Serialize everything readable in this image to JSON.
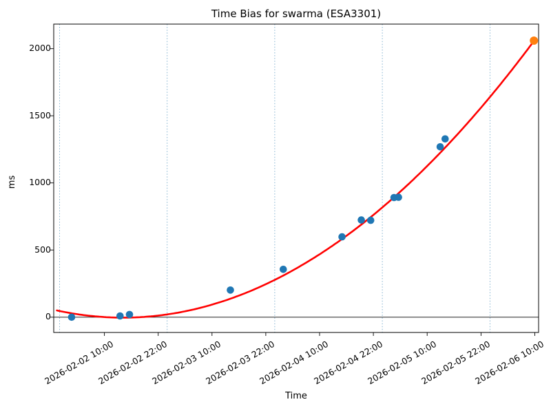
{
  "chart_data": {
    "type": "scatter",
    "title": "Time Bias for swarma (ESA3301)",
    "xlabel": "Time",
    "ylabel": "ms",
    "x_axis_unit": "hours since 2026-02-02 00:00",
    "xlim": [
      -1.3,
      106.85
    ],
    "ylim": [
      -114,
      2183
    ],
    "yticks": [
      0,
      500,
      1000,
      1500,
      2000
    ],
    "xticks": [
      {
        "h": 10,
        "label": "2026-02-02 10:00"
      },
      {
        "h": 22,
        "label": "2026-02-02 22:00"
      },
      {
        "h": 34,
        "label": "2026-02-03 10:00"
      },
      {
        "h": 46,
        "label": "2026-02-03 22:00"
      },
      {
        "h": 58,
        "label": "2026-02-04 10:00"
      },
      {
        "h": 70,
        "label": "2026-02-04 22:00"
      },
      {
        "h": 82,
        "label": "2026-02-05 10:00"
      },
      {
        "h": 94,
        "label": "2026-02-05 22:00"
      },
      {
        "h": 106,
        "label": "2026-02-06 10:00"
      }
    ],
    "gridlines": [
      0,
      24,
      48,
      72,
      96
    ],
    "grid_style": "vertical dotted lines at each midnight",
    "zero_line": true,
    "points": [
      {
        "h": 2.7,
        "time": "2026-02-02 02:42",
        "ms": 0
      },
      {
        "h": 13.5,
        "time": "2026-02-02 13:30",
        "ms": 9
      },
      {
        "h": 15.6,
        "time": "2026-02-02 15:36",
        "ms": 20
      },
      {
        "h": 38.1,
        "time": "2026-02-03 14:06",
        "ms": 202
      },
      {
        "h": 49.9,
        "time": "2026-02-04 01:54",
        "ms": 356
      },
      {
        "h": 63.0,
        "time": "2026-02-04 15:00",
        "ms": 598
      },
      {
        "h": 67.3,
        "time": "2026-02-04 19:18",
        "ms": 724
      },
      {
        "h": 69.4,
        "time": "2026-02-04 21:24",
        "ms": 721
      },
      {
        "h": 74.6,
        "time": "2026-02-05 02:36",
        "ms": 891
      },
      {
        "h": 75.6,
        "time": "2026-02-05 03:36",
        "ms": 893
      },
      {
        "h": 84.9,
        "time": "2026-02-05 12:54",
        "ms": 1269
      },
      {
        "h": 86.0,
        "time": "2026-02-05 14:00",
        "ms": 1328
      }
    ],
    "last_point": {
      "h": 105.8,
      "time": "2026-02-06 09:48",
      "ms": 2060
    },
    "fit": {
      "type": "quadratic",
      "a": 0.2453,
      "b": -6.943,
      "c": 45.73,
      "domain": [
        -0.6,
        105.8
      ]
    },
    "colors": {
      "scatter": "#1f77b4",
      "last_point": "#ff7f0e",
      "fit_line": "#ff0000",
      "gridline": "#74a8c9",
      "axis": "#000000"
    },
    "legend": "none"
  }
}
